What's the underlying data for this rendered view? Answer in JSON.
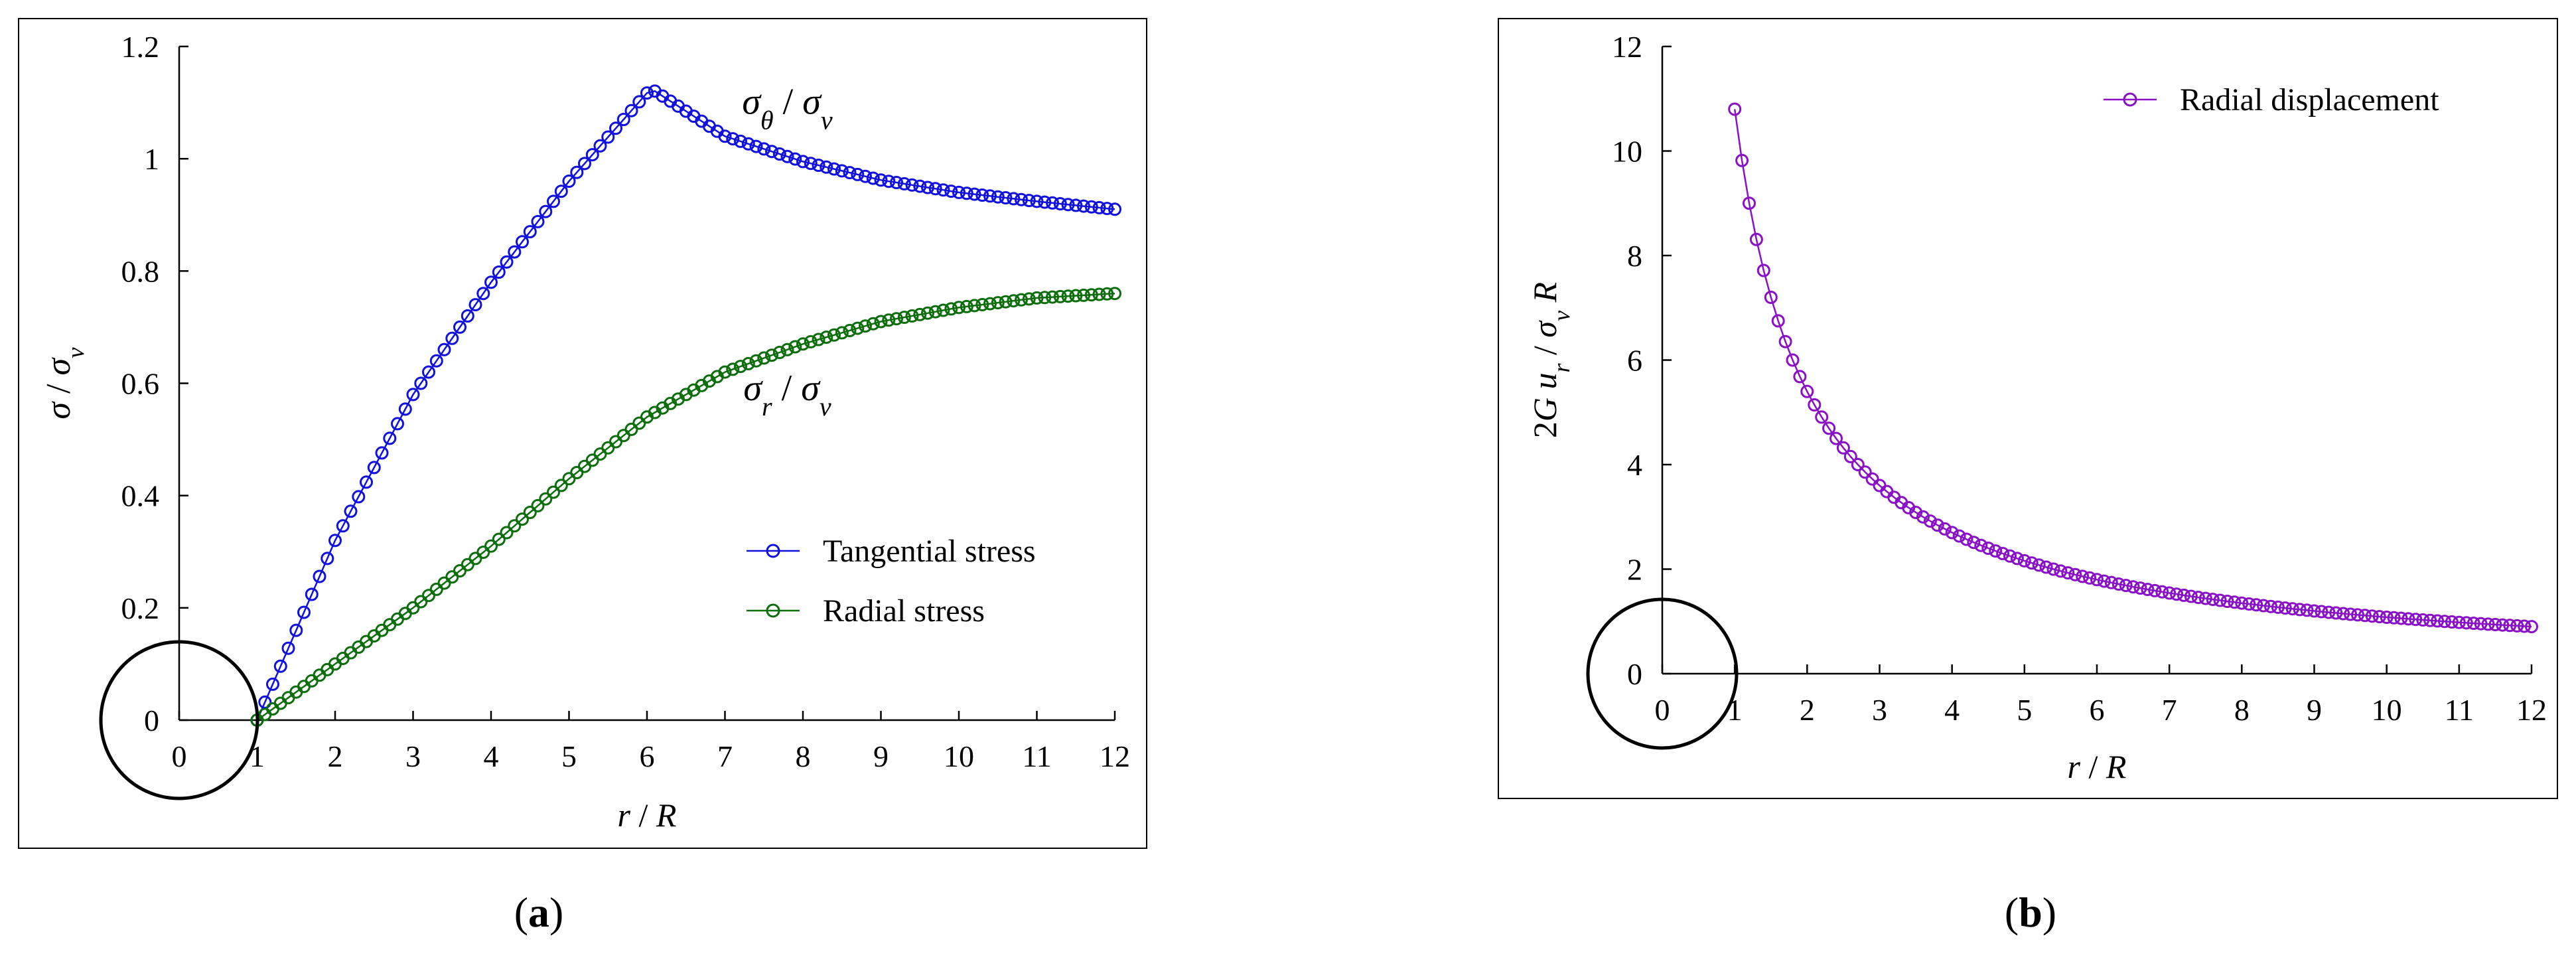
{
  "chart_data": [
    {
      "type": "scatter-line",
      "panel_label": "a",
      "xlabel": "r / R",
      "ylabel": "σ / σv",
      "xlim": [
        0,
        12
      ],
      "ylim": [
        0,
        1.2
      ],
      "xticks": [
        0,
        1,
        2,
        3,
        4,
        5,
        6,
        7,
        8,
        9,
        10,
        11,
        12
      ],
      "yticks": [
        0,
        0.2,
        0.4,
        0.6,
        0.8,
        1.0,
        1.2
      ],
      "ytick_labels": [
        "0",
        "0.2",
        "0.4",
        "0.6",
        "0.8",
        "1",
        "1.2"
      ],
      "grid": false,
      "legend_position": "center-right",
      "annotations": [
        {
          "text_main": "σ",
          "text_sub": "θ",
          "text_mid": " / ",
          "text_main2": "σ",
          "text_sub2": "v",
          "at": [
            7.8,
            1.08
          ]
        },
        {
          "text_main": "σ",
          "text_sub": "r",
          "text_mid": " / ",
          "text_main2": "σ",
          "text_sub2": "v",
          "at": [
            7.8,
            0.57
          ]
        },
        {
          "type": "circle",
          "center": [
            0,
            0
          ],
          "note": "highlight at origin"
        }
      ],
      "series": [
        {
          "name": "Tangential stress",
          "color": "#1010e0",
          "x": [
            1,
            2,
            3,
            4,
            5,
            6.05,
            7,
            8,
            9,
            10,
            11,
            12
          ],
          "y": [
            0,
            0.32,
            0.58,
            0.78,
            0.96,
            1.125,
            1.04,
            0.995,
            0.962,
            0.94,
            0.924,
            0.91
          ]
        },
        {
          "name": "Radial stress",
          "color": "#0b6e0b",
          "x": [
            1,
            2,
            3,
            4,
            5,
            6,
            7,
            8,
            9,
            10,
            11,
            12
          ],
          "y": [
            0,
            0.1,
            0.2,
            0.31,
            0.43,
            0.54,
            0.62,
            0.67,
            0.71,
            0.735,
            0.752,
            0.76
          ]
        }
      ]
    },
    {
      "type": "scatter-line",
      "panel_label": "b",
      "xlabel": "r / R",
      "ylabel": "2G ur / σv R",
      "xlim": [
        0,
        12
      ],
      "ylim": [
        0,
        12
      ],
      "xticks": [
        0,
        1,
        2,
        3,
        4,
        5,
        6,
        7,
        8,
        9,
        10,
        11,
        12
      ],
      "yticks": [
        0,
        2,
        4,
        6,
        8,
        10,
        12
      ],
      "grid": false,
      "legend_position": "top-right",
      "annotations": [
        {
          "type": "circle",
          "center": [
            0,
            0
          ],
          "note": "highlight at origin"
        }
      ],
      "series": [
        {
          "name": "Radial displacement",
          "color": "#8a10c8",
          "formula": "10.8 / x",
          "x_start": 1,
          "x_end": 12,
          "x_step": 0.1
        }
      ]
    }
  ],
  "panel_labels": {
    "a": "a",
    "b": "b"
  }
}
